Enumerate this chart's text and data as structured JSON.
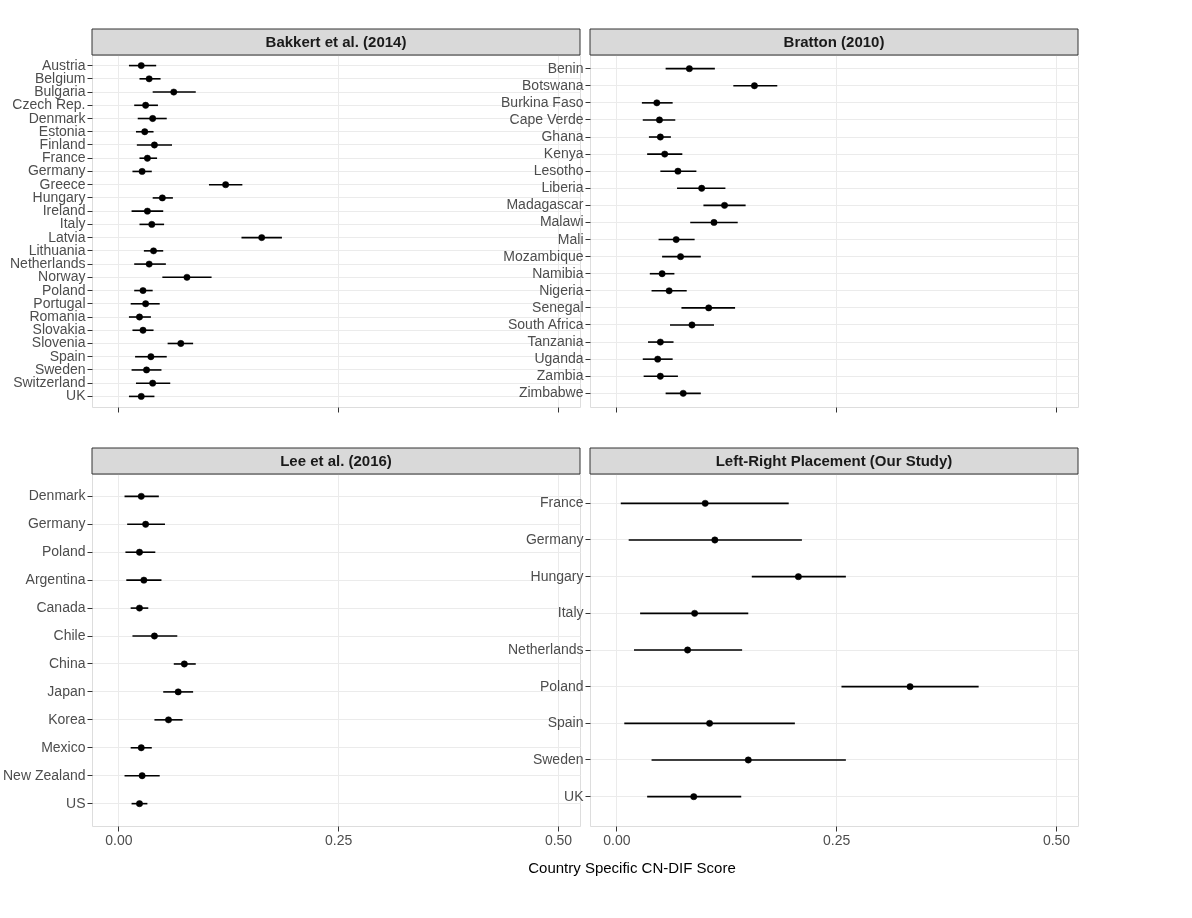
{
  "chart_data": [
    {
      "type": "scatter",
      "orientation": "horizontal",
      "title": "Bakkert et al. (2014)",
      "color": "#000000",
      "marker": "circle",
      "grid": true,
      "tick_labels": "y",
      "categories": [
        "Austria",
        "Belgium",
        "Bulgaria",
        "Czech Rep.",
        "Denmark",
        "Estonia",
        "Finland",
        "France",
        "Germany",
        "Greece",
        "Hungary",
        "Ireland",
        "Italy",
        "Latvia",
        "Lithuania",
        "Netherlands",
        "Norway",
        "Poland",
        "Portugal",
        "Romania",
        "Slovakia",
        "Slovenia",
        "Spain",
        "Sweden",
        "Switzerland",
        "UK"
      ],
      "values": [
        0.026,
        0.035,
        0.063,
        0.031,
        0.039,
        0.03,
        0.041,
        0.033,
        0.027,
        0.122,
        0.05,
        0.033,
        0.038,
        0.163,
        0.04,
        0.035,
        0.078,
        0.028,
        0.031,
        0.024,
        0.028,
        0.071,
        0.037,
        0.032,
        0.039,
        0.026
      ],
      "errors": [
        [
          0.012,
          0.043
        ],
        [
          0.024,
          0.048
        ],
        [
          0.039,
          0.088
        ],
        [
          0.018,
          0.045
        ],
        [
          0.022,
          0.055
        ],
        [
          0.02,
          0.04
        ],
        [
          0.021,
          0.061
        ],
        [
          0.024,
          0.044
        ],
        [
          0.016,
          0.038
        ],
        [
          0.103,
          0.141
        ],
        [
          0.039,
          0.062
        ],
        [
          0.015,
          0.051
        ],
        [
          0.024,
          0.052
        ],
        [
          0.14,
          0.186
        ],
        [
          0.029,
          0.051
        ],
        [
          0.018,
          0.054
        ],
        [
          0.05,
          0.106
        ],
        [
          0.018,
          0.039
        ],
        [
          0.014,
          0.047
        ],
        [
          0.012,
          0.037
        ],
        [
          0.016,
          0.04
        ],
        [
          0.056,
          0.085
        ],
        [
          0.019,
          0.055
        ],
        [
          0.015,
          0.049
        ],
        [
          0.02,
          0.059
        ],
        [
          0.012,
          0.041
        ]
      ],
      "xlim": [
        -0.03,
        0.525
      ],
      "xticks": [
        0,
        0.25,
        0.5
      ]
    },
    {
      "type": "scatter",
      "orientation": "horizontal",
      "title": "Bratton (2010)",
      "color": "#000000",
      "marker": "circle",
      "grid": true,
      "tick_labels": "y",
      "categories": [
        "Benin",
        "Botswana",
        "Burkina Faso",
        "Cape Verde",
        "Ghana",
        "Kenya",
        "Lesotho",
        "Liberia",
        "Madagascar",
        "Malawi",
        "Mali",
        "Mozambique",
        "Namibia",
        "Nigeria",
        "Senegal",
        "South Africa",
        "Tanzania",
        "Uganda",
        "Zambia",
        "Zimbabwe"
      ],
      "values": [
        0.083,
        0.157,
        0.046,
        0.049,
        0.05,
        0.055,
        0.07,
        0.097,
        0.123,
        0.111,
        0.068,
        0.073,
        0.052,
        0.06,
        0.105,
        0.086,
        0.05,
        0.047,
        0.05,
        0.076
      ],
      "errors": [
        [
          0.056,
          0.112
        ],
        [
          0.133,
          0.183
        ],
        [
          0.029,
          0.064
        ],
        [
          0.03,
          0.067
        ],
        [
          0.037,
          0.062
        ],
        [
          0.035,
          0.075
        ],
        [
          0.05,
          0.091
        ],
        [
          0.069,
          0.124
        ],
        [
          0.099,
          0.147
        ],
        [
          0.084,
          0.138
        ],
        [
          0.048,
          0.089
        ],
        [
          0.052,
          0.096
        ],
        [
          0.038,
          0.066
        ],
        [
          0.04,
          0.08
        ],
        [
          0.074,
          0.135
        ],
        [
          0.061,
          0.111
        ],
        [
          0.036,
          0.065
        ],
        [
          0.03,
          0.064
        ],
        [
          0.031,
          0.07
        ],
        [
          0.056,
          0.096
        ]
      ],
      "xlim": [
        -0.03,
        0.525
      ],
      "xticks": [
        0,
        0.25,
        0.5
      ]
    },
    {
      "type": "scatter",
      "orientation": "horizontal",
      "title": "Lee et al. (2016)",
      "xlabel": "Country Specific CN-DIF Score",
      "color": "#000000",
      "marker": "circle",
      "grid": true,
      "categories": [
        "Denmark",
        "Germany",
        "Poland",
        "Argentina",
        "Canada",
        "Chile",
        "China",
        "Japan",
        "Korea",
        "Mexico",
        "New Zealand",
        "US"
      ],
      "values": [
        0.026,
        0.031,
        0.024,
        0.029,
        0.024,
        0.041,
        0.075,
        0.068,
        0.057,
        0.026,
        0.027,
        0.024
      ],
      "errors": [
        [
          0.007,
          0.046
        ],
        [
          0.01,
          0.053
        ],
        [
          0.008,
          0.042
        ],
        [
          0.009,
          0.049
        ],
        [
          0.014,
          0.034
        ],
        [
          0.016,
          0.067
        ],
        [
          0.063,
          0.088
        ],
        [
          0.051,
          0.085
        ],
        [
          0.041,
          0.073
        ],
        [
          0.014,
          0.038
        ],
        [
          0.007,
          0.047
        ],
        [
          0.015,
          0.033
        ]
      ],
      "xlim": [
        -0.03,
        0.525
      ],
      "xticks": [
        {
          "value": 0,
          "label": "0.00"
        },
        {
          "value": 0.25,
          "label": "0.25"
        },
        {
          "value": 0.5,
          "label": "0.50"
        }
      ]
    },
    {
      "type": "scatter",
      "orientation": "horizontal",
      "title": "Left-Right Placement (Our Study)",
      "color": "#000000",
      "marker": "circle",
      "grid": true,
      "categories": [
        "France",
        "Germany",
        "Hungary",
        "Italy",
        "Netherlands",
        "Poland",
        "Spain",
        "Sweden",
        "UK"
      ],
      "values": [
        0.101,
        0.112,
        0.207,
        0.089,
        0.081,
        0.334,
        0.106,
        0.15,
        0.088
      ],
      "errors": [
        [
          0.005,
          0.196
        ],
        [
          0.014,
          0.211
        ],
        [
          0.154,
          0.261
        ],
        [
          0.027,
          0.15
        ],
        [
          0.02,
          0.143
        ],
        [
          0.256,
          0.412
        ],
        [
          0.009,
          0.203
        ],
        [
          0.04,
          0.261
        ],
        [
          0.035,
          0.142
        ]
      ],
      "xlim": [
        -0.03,
        0.525
      ],
      "xticks": [
        {
          "value": 0,
          "label": "0.00"
        },
        {
          "value": 0.25,
          "label": "0.25"
        },
        {
          "value": 0.5,
          "label": "0.50"
        }
      ]
    }
  ]
}
